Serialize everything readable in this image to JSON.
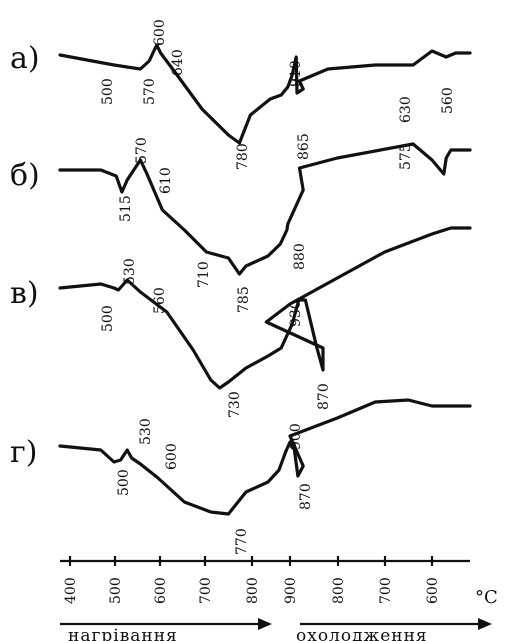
{
  "chart_data": {
    "type": "line",
    "unit": "°C",
    "x_ticks": [
      "400",
      "500",
      "600",
      "700",
      "800",
      "900",
      "800",
      "700",
      "600"
    ],
    "direction_labels": {
      "heating": "нагрівання",
      "cooling": "охолодження"
    },
    "series": [
      {
        "name": "а)",
        "points": [
          [
            380,
            0
          ],
          [
            500,
            -10
          ],
          [
            560,
            -14
          ],
          [
            580,
            -6
          ],
          [
            597,
            10
          ],
          [
            606,
            2
          ],
          [
            640,
            -18
          ],
          [
            700,
            -54
          ],
          [
            760,
            -80
          ],
          [
            785,
            -88
          ],
          [
            810,
            -60
          ],
          [
            855,
            -44
          ],
          [
            880,
            -40
          ],
          [
            895,
            -32
          ],
          [
            905,
            -20
          ],
          [
            914,
            -2
          ],
          [
            916,
            -38
          ],
          [
            930,
            -34
          ],
          [
            880,
            -26
          ],
          [
            820,
            -14
          ],
          [
            720,
            -10
          ],
          [
            640,
            -10
          ],
          [
            600,
            4
          ],
          [
            570,
            -2
          ],
          [
            550,
            2
          ]
        ],
        "peak_labels": [
          "500",
          "570",
          "600",
          "640",
          "780",
          "910",
          "865"
        ]
      },
      {
        "name": "б)",
        "points": [
          [
            380,
            0
          ],
          [
            470,
            0
          ],
          [
            505,
            -6
          ],
          [
            518,
            -22
          ],
          [
            530,
            -10
          ],
          [
            560,
            10
          ],
          [
            575,
            -4
          ],
          [
            610,
            -40
          ],
          [
            660,
            -60
          ],
          [
            710,
            -82
          ],
          [
            760,
            -88
          ],
          [
            785,
            -104
          ],
          [
            800,
            -96
          ],
          [
            850,
            -86
          ],
          [
            878,
            -74
          ],
          [
            893,
            -60
          ],
          [
            895,
            -54
          ],
          [
            930,
            -20
          ],
          [
            880,
            2
          ],
          [
            800,
            12
          ],
          [
            640,
            26
          ],
          [
            600,
            10
          ],
          [
            575,
            -4
          ],
          [
            570,
            12
          ],
          [
            560,
            20
          ]
        ],
        "peak_labels": [
          "515",
          "570",
          "610",
          "710",
          "785",
          "880",
          "575",
          "630",
          "560"
        ]
      },
      {
        "name": "в)",
        "points": [
          [
            380,
            0
          ],
          [
            470,
            4
          ],
          [
            500,
            0
          ],
          [
            510,
            -2
          ],
          [
            530,
            8
          ],
          [
            540,
            4
          ],
          [
            560,
            -4
          ],
          [
            620,
            -24
          ],
          [
            680,
            -62
          ],
          [
            720,
            -92
          ],
          [
            740,
            -100
          ],
          [
            760,
            -94
          ],
          [
            800,
            -80
          ],
          [
            850,
            -68
          ],
          [
            880,
            -60
          ],
          [
            905,
            -36
          ],
          [
            920,
            -12
          ],
          [
            935,
            -12
          ],
          [
            960,
            -58
          ],
          [
            975,
            -82
          ],
          [
            975,
            -60
          ],
          [
            950,
            -34
          ],
          [
            900,
            -16
          ],
          [
            800,
            10
          ],
          [
            700,
            36
          ],
          [
            600,
            54
          ],
          [
            560,
            60
          ]
        ],
        "peak_labels": [
          "500",
          "530",
          "560",
          "730",
          "930",
          "870"
        ]
      },
      {
        "name": "г)",
        "points": [
          [
            380,
            0
          ],
          [
            470,
            -4
          ],
          [
            500,
            -16
          ],
          [
            515,
            -14
          ],
          [
            530,
            -4
          ],
          [
            540,
            -12
          ],
          [
            560,
            -18
          ],
          [
            600,
            -32
          ],
          [
            660,
            -56
          ],
          [
            720,
            -66
          ],
          [
            760,
            -68
          ],
          [
            800,
            -46
          ],
          [
            850,
            -36
          ],
          [
            875,
            -24
          ],
          [
            890,
            -6
          ],
          [
            900,
            4
          ],
          [
            910,
            -4
          ],
          [
            918,
            -30
          ],
          [
            930,
            -20
          ],
          [
            900,
            10
          ],
          [
            800,
            28
          ],
          [
            720,
            44
          ],
          [
            650,
            46
          ],
          [
            600,
            40
          ],
          [
            560,
            40
          ]
        ],
        "peak_labels": [
          "500",
          "530",
          "600",
          "770",
          "900",
          "870"
        ]
      }
    ]
  }
}
